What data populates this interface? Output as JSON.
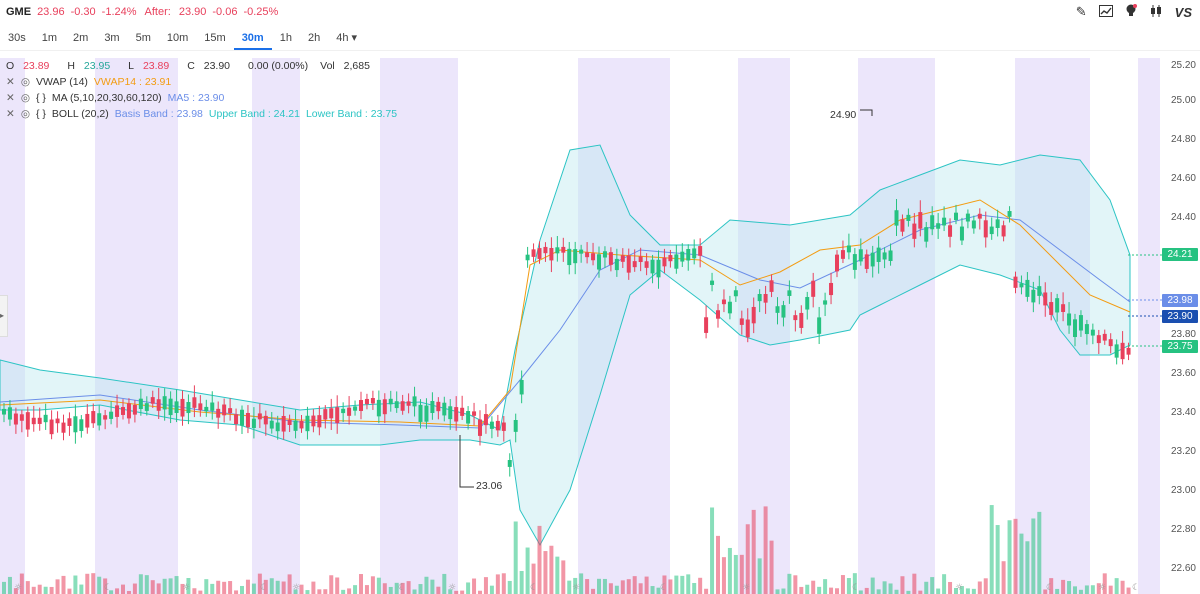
{
  "header": {
    "symbol": "GME",
    "last": "23.96",
    "change": "-0.30",
    "change_pct": "-1.24%",
    "after_label": "After:",
    "after_price": "23.90",
    "after_change": "-0.06",
    "after_pct": "-0.25%"
  },
  "toolbar": {
    "icons": [
      "pencil-icon",
      "trend-icon",
      "lightbulb-icon",
      "candles-icon",
      "vs-icon"
    ],
    "vs_label": "VS"
  },
  "timeframes": {
    "items": [
      "30s",
      "1m",
      "2m",
      "3m",
      "5m",
      "10m",
      "15m",
      "30m",
      "1h",
      "2h",
      "4h ▾"
    ],
    "active": "30m"
  },
  "ohlc": {
    "o_label": "O",
    "o": "23.89",
    "h_label": "H",
    "h": "23.95",
    "l_label": "L",
    "l": "23.89",
    "c_label": "C",
    "c": "23.90",
    "chg": "0.00 (0.00%)",
    "vol_label": "Vol",
    "vol": "2,685"
  },
  "indicators": [
    {
      "name": "VWAP (14)",
      "value_label": "VWAP14 : 23.91",
      "color": "#f39c12"
    },
    {
      "name": "MA (5,10,20,30,60,120)",
      "value_label": "MA5 : 23.90",
      "color": "#6b8ee8"
    },
    {
      "name": "BOLL (20,2)",
      "basis": "Basis Band : 23.98",
      "upper": "Upper Band : 24.21",
      "lower": "Lower Band : 23.75",
      "basis_color": "#6b8ee8",
      "band_color": "#2cc4c4"
    }
  ],
  "price_axis": {
    "ticks": [
      "25.20",
      "25.00",
      "24.80",
      "24.60",
      "24.40",
      "23.80",
      "23.60",
      "23.40",
      "23.20",
      "23.00",
      "22.80",
      "22.60"
    ]
  },
  "price_tags": {
    "upper": "24.21",
    "basis": "23.98",
    "last": "23.90",
    "lower": "23.75"
  },
  "annotations": {
    "high": "24.90",
    "low": "23.06"
  },
  "colors": {
    "up": "#26c281",
    "down": "#e8405c",
    "band_fill": "#bfe8f0",
    "night": "#ece6fb",
    "accent": "#1a6fe8"
  }
}
